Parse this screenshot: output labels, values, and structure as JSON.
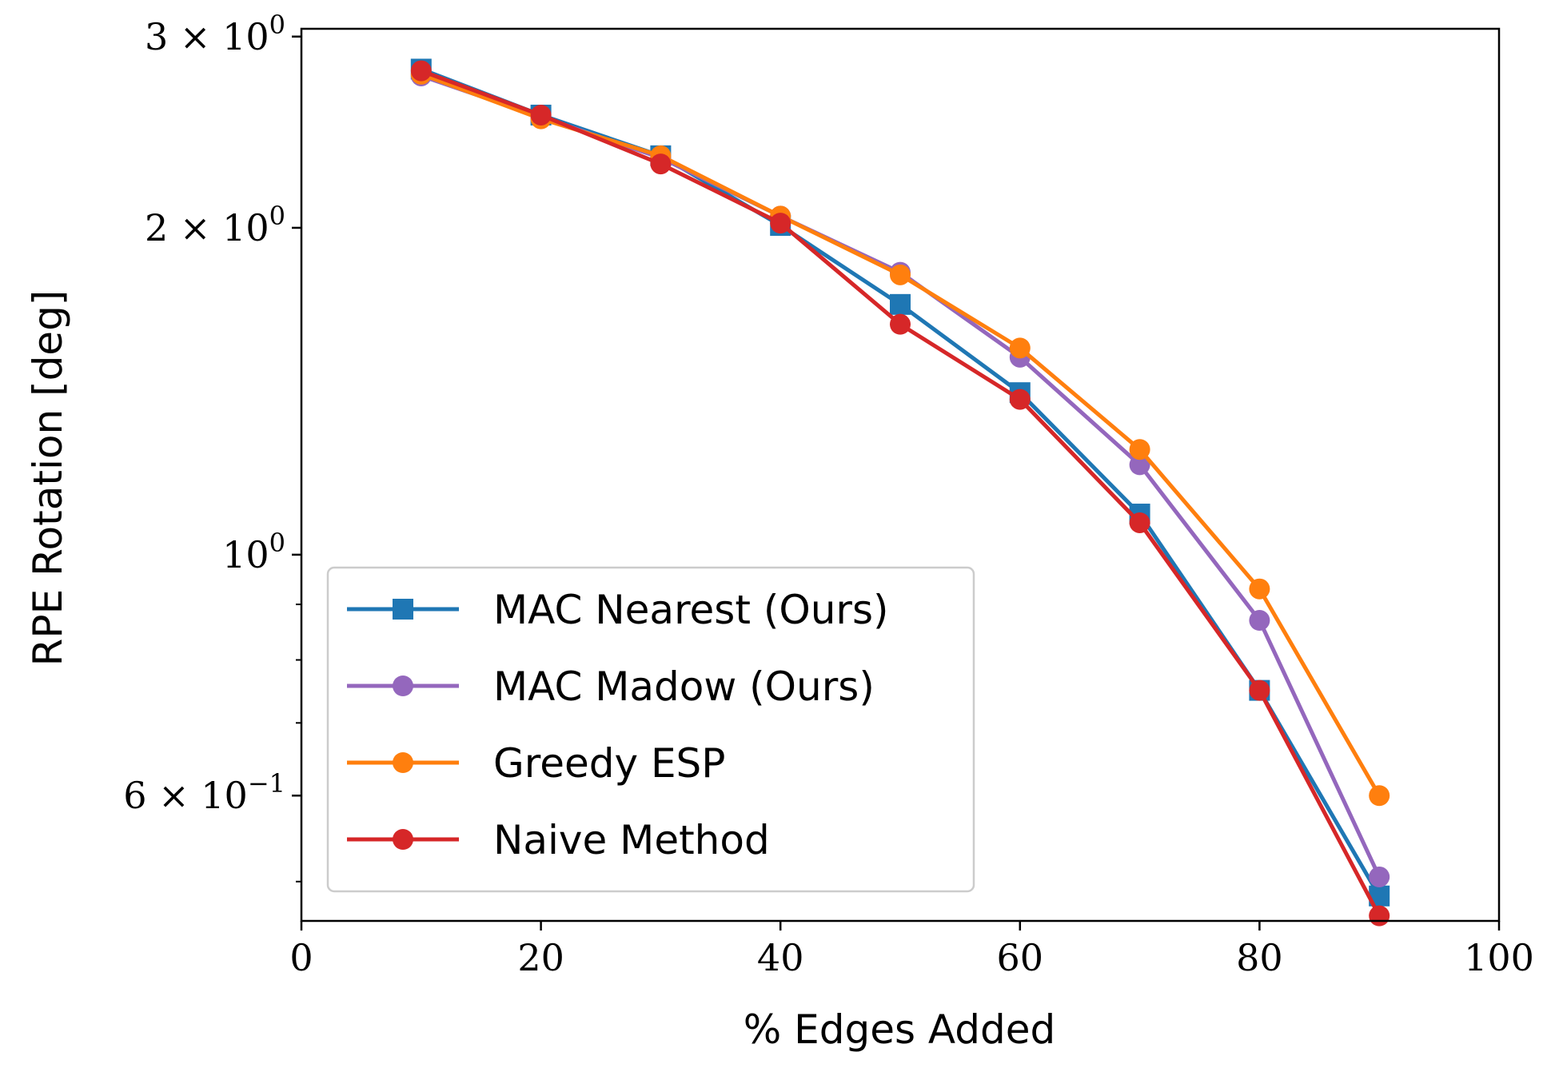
{
  "chart_data": {
    "type": "line",
    "title": "",
    "xlabel": "% Edges Added",
    "ylabel": "RPE Rotation [deg]",
    "xlim": [
      0,
      100
    ],
    "ylim": [
      0.46,
      3.05
    ],
    "yscale": "log",
    "grid": false,
    "legend_position": "lower-left",
    "x_ticks": [
      {
        "value": 0,
        "label": "0"
      },
      {
        "value": 20,
        "label": "20"
      },
      {
        "value": 40,
        "label": "40"
      },
      {
        "value": 60,
        "label": "60"
      },
      {
        "value": 80,
        "label": "80"
      },
      {
        "value": 100,
        "label": "100"
      }
    ],
    "y_major_ticks": [
      {
        "value": 3,
        "mantissa": "3 × 10",
        "exponent": "0"
      },
      {
        "value": 2,
        "mantissa": "2 × 10",
        "exponent": "0"
      },
      {
        "value": 1,
        "mantissa": "10",
        "exponent": "0"
      },
      {
        "value": 0.6,
        "mantissa": "6 × 10",
        "exponent": "−1"
      }
    ],
    "y_minor_ticks": [
      0.5,
      0.7,
      0.8,
      0.9
    ],
    "x": [
      10,
      20,
      30,
      40,
      50,
      60,
      70,
      80,
      90
    ],
    "series": [
      {
        "name": "MAC Nearest (Ours)",
        "color": "#1f77b4",
        "marker": "square",
        "values": [
          2.8,
          2.54,
          2.33,
          2.01,
          1.7,
          1.41,
          1.09,
          0.75,
          0.485
        ]
      },
      {
        "name": "MAC Madow (Ours)",
        "color": "#9467bd",
        "marker": "circle",
        "values": [
          2.76,
          2.53,
          2.32,
          2.05,
          1.82,
          1.52,
          1.21,
          0.87,
          0.505
        ]
      },
      {
        "name": "Greedy ESP",
        "color": "#ff7f0e",
        "marker": "circle",
        "values": [
          2.77,
          2.52,
          2.33,
          2.05,
          1.81,
          1.55,
          1.25,
          0.93,
          0.6
        ]
      },
      {
        "name": "Naive Method",
        "color": "#d62728",
        "marker": "circle",
        "values": [
          2.79,
          2.54,
          2.29,
          2.02,
          1.63,
          1.39,
          1.07,
          0.75,
          0.465
        ]
      }
    ]
  }
}
